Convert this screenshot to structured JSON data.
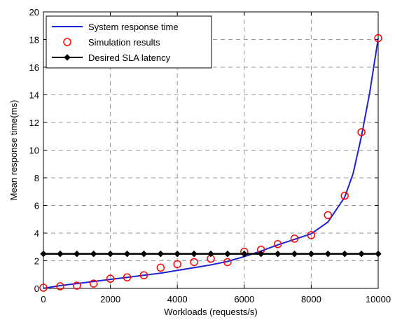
{
  "chart_data": {
    "type": "line",
    "xlabel": "Workloads (requests/s)",
    "ylabel": "Mean response time(ms)",
    "xlim": [
      0,
      10000
    ],
    "ylim": [
      0,
      20
    ],
    "xticks": [
      0,
      2000,
      4000,
      6000,
      8000,
      10000
    ],
    "yticks": [
      0,
      2,
      4,
      6,
      8,
      10,
      12,
      14,
      16,
      18,
      20
    ],
    "grid": true,
    "legend_position": "top-left",
    "series": [
      {
        "name": "System response time",
        "style": "line",
        "color": "#1f1fd6",
        "x": [
          0,
          500,
          1000,
          1500,
          2000,
          2500,
          3000,
          3500,
          4000,
          4500,
          5000,
          5500,
          6000,
          6500,
          7000,
          7500,
          8000,
          8500,
          9000,
          9250,
          9500,
          9750,
          10000
        ],
        "y": [
          0.0,
          0.2,
          0.35,
          0.5,
          0.65,
          0.8,
          0.95,
          1.1,
          1.3,
          1.5,
          1.7,
          1.95,
          2.3,
          2.7,
          3.15,
          3.55,
          3.95,
          4.8,
          6.6,
          8.3,
          11.0,
          14.2,
          18.1
        ]
      },
      {
        "name": "Simulation results",
        "style": "circle",
        "color": "#ff0000",
        "x": [
          0,
          500,
          1000,
          1500,
          2000,
          2500,
          3000,
          3500,
          4000,
          4500,
          5000,
          5500,
          6000,
          6500,
          7000,
          7500,
          8000,
          8500,
          9000,
          9500,
          10000
        ],
        "y": [
          0.05,
          0.15,
          0.2,
          0.35,
          0.7,
          0.8,
          0.95,
          1.5,
          1.75,
          1.9,
          2.15,
          1.9,
          2.65,
          2.8,
          3.2,
          3.6,
          3.85,
          5.3,
          6.7,
          11.3,
          18.1
        ]
      },
      {
        "name": "Desired SLA latency",
        "style": "line-diamond",
        "color": "#000000",
        "x": [
          0,
          500,
          1000,
          1500,
          2000,
          2500,
          3000,
          3500,
          4000,
          4500,
          5000,
          5500,
          6000,
          6500,
          7000,
          7500,
          8000,
          8500,
          9000,
          9500,
          10000
        ],
        "y": [
          2.5,
          2.5,
          2.5,
          2.5,
          2.5,
          2.5,
          2.5,
          2.5,
          2.5,
          2.5,
          2.5,
          2.5,
          2.5,
          2.5,
          2.5,
          2.5,
          2.5,
          2.5,
          2.5,
          2.5,
          2.5
        ]
      }
    ]
  }
}
